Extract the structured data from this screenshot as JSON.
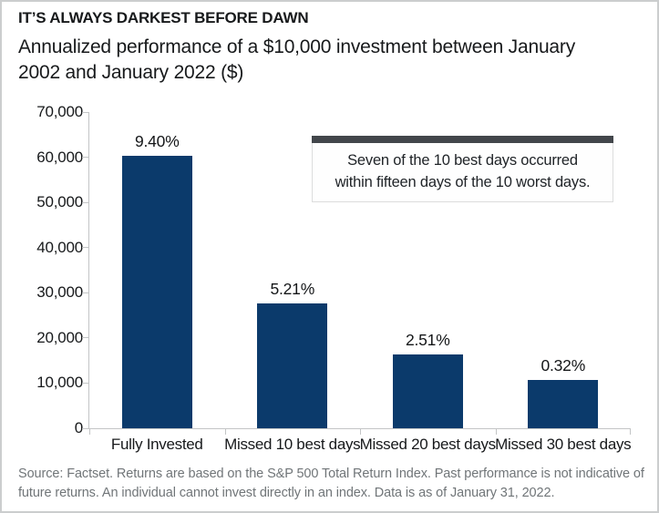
{
  "header": {
    "title": "IT’S ALWAYS DARKEST BEFORE DAWN",
    "subtitle_line1": "Annualized performance of a $10,000 investment between January",
    "subtitle_line2": "2002 and January 2022 ($)"
  },
  "annotation": {
    "line1": "Seven of the 10 best days occurred",
    "line2": "within fifteen days of the 10 worst days."
  },
  "footer": {
    "source_line1": "Source: Factset. Returns are based on the S&P 500 Total Return Index. Past performance is not indicative of",
    "source_line2": "future returns. An individual cannot invest directly in an index. Data is as of January 31, 2022."
  },
  "colors": {
    "bar": "#0b3a6b",
    "annotation_accent": "#42464b",
    "axis": "#c3c5c6"
  },
  "chart_data": {
    "type": "bar",
    "title": "IT’S ALWAYS DARKEST BEFORE DAWN",
    "subtitle": "Annualized performance of a $10,000 investment between January 2002 and January 2022 ($)",
    "categories": [
      "Fully Invested",
      "Missed 10 best days",
      "Missed 20 best days",
      "Missed 30 best days"
    ],
    "values": [
      60300,
      27600,
      16400,
      10650
    ],
    "bar_labels": [
      "9.40%",
      "5.21%",
      "2.51%",
      "0.32%"
    ],
    "xlabel": "",
    "ylabel": "",
    "ylim": [
      0,
      70000
    ],
    "ytick_values": [
      0,
      10000,
      20000,
      30000,
      40000,
      50000,
      60000,
      70000
    ],
    "ytick_labels": [
      "0",
      "10,000",
      "20,000",
      "30,000",
      "40,000",
      "50,000",
      "60,000",
      "70,000"
    ],
    "grid": "off",
    "legend": "none",
    "annotation": "Seven of the 10 best days occurred within fifteen days of the 10 worst days."
  }
}
